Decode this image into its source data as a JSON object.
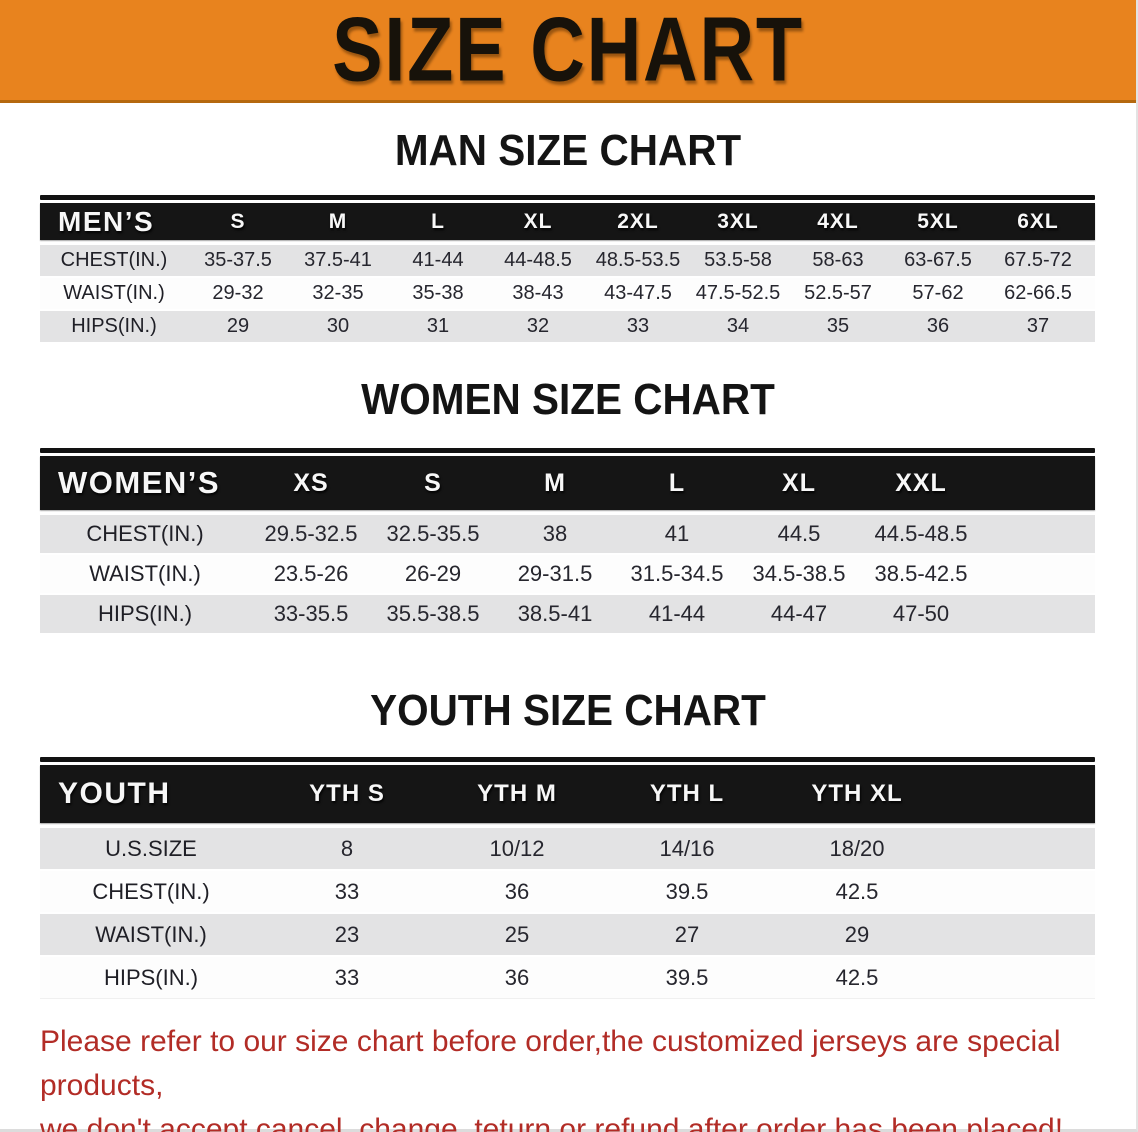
{
  "banner": {
    "title": "SIZE CHART"
  },
  "chart_data": [
    {
      "type": "table",
      "title": "MAN SIZE CHART",
      "corner_label": "MEN’S",
      "columns": [
        "S",
        "M",
        "L",
        "XL",
        "2XL",
        "3XL",
        "4XL",
        "5XL",
        "6XL"
      ],
      "rows": [
        {
          "label": "CHEST(IN.)",
          "values": [
            "35-37.5",
            "37.5-41",
            "41-44",
            "44-48.5",
            "48.5-53.5",
            "53.5-58",
            "58-63",
            "63-67.5",
            "67.5-72"
          ]
        },
        {
          "label": "WAIST(IN.)",
          "values": [
            "29-32",
            "32-35",
            "35-38",
            "38-43",
            "43-47.5",
            "47.5-52.5",
            "52.5-57",
            "57-62",
            "62-66.5"
          ]
        },
        {
          "label": "HIPS(IN.)",
          "values": [
            "29",
            "30",
            "31",
            "32",
            "33",
            "34",
            "35",
            "36",
            "37"
          ]
        }
      ]
    },
    {
      "type": "table",
      "title": "WOMEN SIZE CHART",
      "corner_label": "WOMEN’S",
      "columns": [
        "XS",
        "S",
        "M",
        "L",
        "XL",
        "XXL"
      ],
      "rows": [
        {
          "label": "CHEST(IN.)",
          "values": [
            "29.5-32.5",
            "32.5-35.5",
            "38",
            "41",
            "44.5",
            "44.5-48.5"
          ]
        },
        {
          "label": "WAIST(IN.)",
          "values": [
            "23.5-26",
            "26-29",
            "29-31.5",
            "31.5-34.5",
            "34.5-38.5",
            "38.5-42.5"
          ]
        },
        {
          "label": "HIPS(IN.)",
          "values": [
            "33-35.5",
            "35.5-38.5",
            "38.5-41",
            "41-44",
            "44-47",
            "47-50"
          ]
        }
      ]
    },
    {
      "type": "table",
      "title": "YOUTH SIZE CHART",
      "corner_label": "YOUTH",
      "columns": [
        "YTH S",
        "YTH M",
        "YTH L",
        "YTH XL"
      ],
      "rows": [
        {
          "label": "U.S.SIZE",
          "values": [
            "8",
            "10/12",
            "14/16",
            "18/20"
          ]
        },
        {
          "label": "CHEST(IN.)",
          "values": [
            "33",
            "36",
            "39.5",
            "42.5"
          ]
        },
        {
          "label": "WAIST(IN.)",
          "values": [
            "23",
            "25",
            "27",
            "29"
          ]
        },
        {
          "label": "HIPS(IN.)",
          "values": [
            "33",
            "36",
            "39.5",
            "42.5"
          ]
        }
      ]
    }
  ],
  "disclaimer": {
    "line1": "Please refer to our size chart before order,the customized jerseys are special products,",
    "line2": "we don't accept cancel, change, teturn or refund after order has been placed!"
  },
  "colors": {
    "banner_orange": "#E8831E",
    "banner_edge": "#B5680F",
    "header_black": "#151515",
    "row_gray": "#E3E3E4",
    "row_white": "#FDFDFD",
    "disclaimer_red": "#B22C26"
  }
}
